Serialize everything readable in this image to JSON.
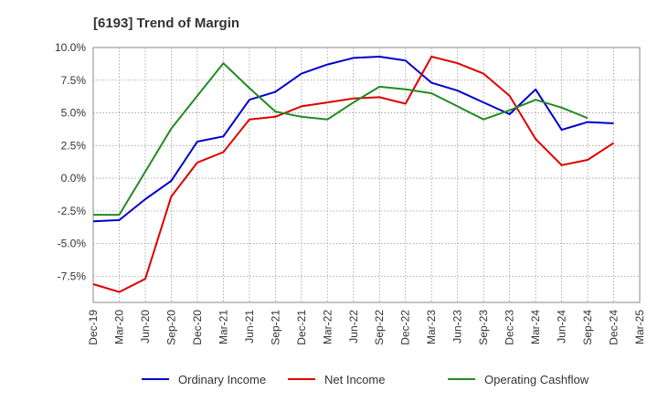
{
  "chart_data": {
    "type": "line",
    "title": "[6193]  Trend of Margin",
    "xlabel": "",
    "ylabel": "",
    "x": [
      "Dec-19",
      "Mar-20",
      "Jun-20",
      "Sep-20",
      "Dec-20",
      "Mar-21",
      "Jun-21",
      "Sep-21",
      "Dec-21",
      "Mar-22",
      "Jun-22",
      "Sep-22",
      "Dec-22",
      "Mar-23",
      "Jun-23",
      "Sep-23",
      "Dec-23",
      "Mar-24",
      "Jun-24",
      "Sep-24",
      "Dec-24",
      "Mar-25"
    ],
    "ylim": [
      -9.5,
      10.0
    ],
    "yticks": [
      10.0,
      7.5,
      5.0,
      2.5,
      0.0,
      -2.5,
      -5.0,
      -7.5
    ],
    "ytick_labels": [
      "10.0%",
      "7.5%",
      "5.0%",
      "2.5%",
      "0.0%",
      "-2.5%",
      "-5.0%",
      "-7.5%"
    ],
    "grid": true,
    "legend_position": "bottom",
    "series": [
      {
        "name": "Ordinary Income",
        "color": "#0000cc",
        "values": [
          -3.3,
          -3.2,
          -1.6,
          -0.2,
          2.8,
          3.2,
          6.0,
          6.6,
          8.0,
          8.7,
          9.2,
          9.3,
          9.0,
          7.3,
          6.7,
          5.8,
          4.9,
          6.8,
          3.7,
          4.3,
          4.2,
          null
        ]
      },
      {
        "name": "Net Income",
        "color": "#dd0000",
        "values": [
          -8.1,
          -8.7,
          -7.7,
          -1.4,
          1.2,
          2.0,
          4.5,
          4.7,
          5.5,
          5.8,
          6.1,
          6.2,
          5.7,
          9.3,
          8.8,
          8.0,
          6.3,
          3.0,
          1.0,
          1.4,
          2.7,
          null
        ]
      },
      {
        "name": "Operating Cashflow",
        "color": "#228b22",
        "values": [
          -2.8,
          -2.8,
          0.5,
          3.8,
          6.3,
          8.8,
          6.9,
          5.1,
          4.7,
          4.5,
          5.8,
          7.0,
          6.8,
          6.5,
          5.5,
          4.5,
          5.2,
          6.0,
          5.4,
          4.6,
          null,
          null
        ]
      }
    ]
  }
}
